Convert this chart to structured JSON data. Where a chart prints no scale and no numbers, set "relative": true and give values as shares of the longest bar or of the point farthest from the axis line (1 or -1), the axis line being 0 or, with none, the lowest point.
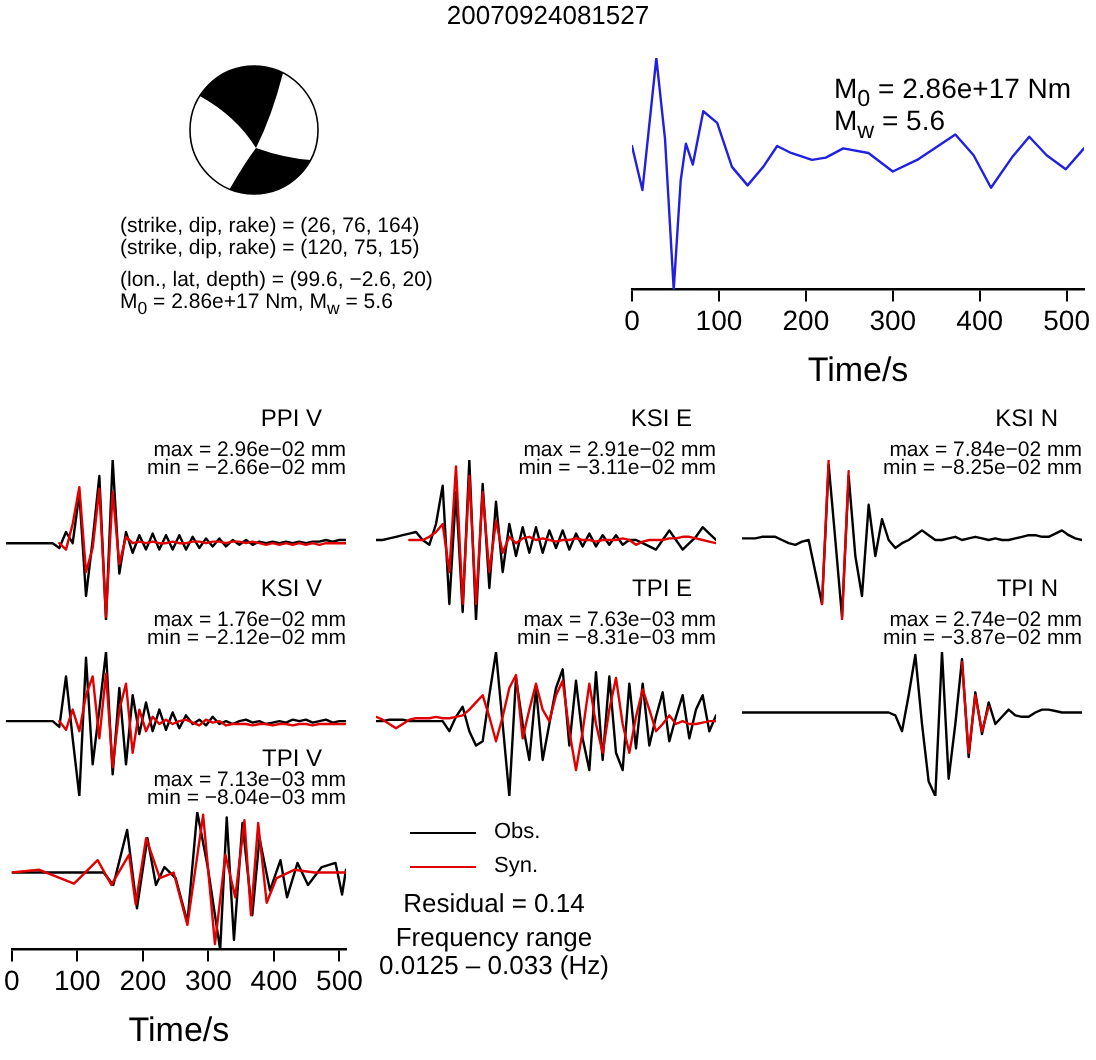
{
  "chart_data": [
    {
      "type": "other",
      "title": "20070924081527",
      "annotations": [
        "(strike, dip, rake) = (26, 76, 164)",
        "(strike, dip, rake) = (120, 75, 15)",
        "(lon., lat, depth) = (99.6, −2.6, 20)",
        "M$_{0}$ = 2.86e+17 Nm, M$_{w}$ = 5.6"
      ]
    },
    {
      "type": "line",
      "xlabel": "Time/s",
      "annotations": [
        "M$_{0}$ = 2.86e+17 Nm",
        "M$_{w}$ = 5.6"
      ],
      "relative": true,
      "xlim": [
        0,
        520
      ],
      "xticks": [
        0,
        100,
        200,
        300,
        400,
        500
      ],
      "tick_labels": "x",
      "series": [
        {
          "color": "#2020e0",
          "x": [
            0,
            12,
            28,
            38,
            48,
            56,
            62,
            70,
            82,
            98,
            115,
            133,
            151,
            167,
            183,
            207,
            223,
            243,
            272,
            300,
            328,
            372,
            393,
            413,
            437,
            457,
            477,
            499,
            520
          ],
          "values": [
            0.62,
            0.43,
            1.0,
            0.65,
            0,
            0.47,
            0.63,
            0.54,
            0.77,
            0.72,
            0.53,
            0.45,
            0.53,
            0.62,
            0.59,
            0.56,
            0.57,
            0.61,
            0.59,
            0.51,
            0.56,
            0.67,
            0.58,
            0.44,
            0.57,
            0.66,
            0.58,
            0.52,
            0.61
          ]
        }
      ]
    },
    {
      "type": "line",
      "title": "PPI V",
      "annotations": [
        "max = 2.96e−02 mm",
        "min = −2.66e−02 mm"
      ],
      "relative": true,
      "tick_labels": false,
      "categories": [
        null,
        null,
        null,
        null,
        null,
        null,
        null,
        null,
        null,
        null,
        null,
        null,
        null,
        null,
        null,
        null,
        null,
        null,
        null,
        null,
        null,
        null,
        null,
        null,
        null,
        null,
        null,
        null,
        null,
        null,
        null,
        null,
        null,
        null,
        null,
        null,
        null,
        null,
        null,
        null,
        null,
        null,
        null,
        null,
        null,
        null,
        null,
        null,
        null,
        null,
        null,
        null
      ],
      "series": [
        {
          "color": "#000000",
          "values": [
            0.48,
            0.48,
            0.48,
            0.48,
            0.48,
            0.48,
            0.48,
            0.48,
            0.45,
            0.55,
            0.48,
            0.79,
            0.15,
            0.5,
            0.9,
            0,
            1,
            0.29,
            0.55,
            0.42,
            0.53,
            0.44,
            0.54,
            0.44,
            0.53,
            0.44,
            0.53,
            0.44,
            0.52,
            0.45,
            0.51,
            0.46,
            0.51,
            0.46,
            0.5,
            0.47,
            0.5,
            0.47,
            0.49,
            0.48,
            0.49,
            0.48,
            0.49,
            0.48,
            0.49,
            0.48,
            0.49,
            0.49,
            0.5,
            0.49,
            0.5,
            0.5
          ]
        },
        {
          "color": "#e00000",
          "values": [
            null,
            null,
            null,
            null,
            null,
            null,
            null,
            null,
            0.48,
            0.44,
            0.6,
            0.83,
            0.3,
            0.45,
            0.82,
            0.02,
            0.8,
            0.35,
            0.52,
            0.48,
            0.49,
            0.48,
            0.49,
            0.48,
            0.48,
            0.49,
            0.48,
            0.48,
            0.49,
            0.49,
            0.48,
            0.49,
            0.49,
            0.48,
            0.49,
            0.49,
            0.48,
            0.49,
            0.48,
            0.47,
            0.48,
            0.47,
            0.48,
            0.47,
            0.48,
            0.47,
            0.48,
            0.47,
            0.48,
            0.48,
            0.48,
            0.48
          ]
        }
      ]
    },
    {
      "type": "line",
      "title": "KSI E",
      "annotations": [
        "max = 2.91e−02 mm",
        "min = −3.11e−02 mm"
      ],
      "relative": true,
      "tick_labels": false,
      "categories": [
        null,
        null,
        null,
        null,
        null,
        null,
        null,
        null,
        null,
        null,
        null,
        null,
        null,
        null,
        null,
        null,
        null,
        null,
        null,
        null,
        null,
        null,
        null,
        null,
        null,
        null,
        null,
        null,
        null,
        null,
        null,
        null,
        null,
        null,
        null,
        null,
        null,
        null,
        null,
        null,
        null,
        null,
        null,
        null,
        null,
        null,
        null,
        null,
        null,
        null,
        null,
        null
      ],
      "series": [
        {
          "color": "#000000",
          "values": [
            0.5,
            0.5,
            0.51,
            0.52,
            0.53,
            0.54,
            0.55,
            0.5,
            0.47,
            0.6,
            0.84,
            0.1,
            0.8,
            0.05,
            1,
            0,
            0.85,
            0.2,
            0.74,
            0.3,
            0.6,
            0.4,
            0.58,
            0.42,
            0.58,
            0.42,
            0.56,
            0.45,
            0.56,
            0.44,
            0.54,
            0.46,
            0.54,
            0.46,
            0.53,
            0.47,
            0.53,
            0.47,
            0.5,
            0.5,
            0.48,
            0.46,
            0.44,
            0.5,
            0.56,
            0.5,
            0.44,
            0.48,
            0.52,
            0.58,
            0.54,
            0.5
          ]
        },
        {
          "color": "#e00000",
          "values": [
            null,
            null,
            null,
            null,
            null,
            0.5,
            0.5,
            0.5,
            0.52,
            0.55,
            0.6,
            0.3,
            0.96,
            0.1,
            0.9,
            0.1,
            0.8,
            0.3,
            0.62,
            0.42,
            0.52,
            0.48,
            0.51,
            0.52,
            0.5,
            0.51,
            0.5,
            0.49,
            0.5,
            0.5,
            0.51,
            0.5,
            0.5,
            0.49,
            0.5,
            0.5,
            0.5,
            0.51,
            0.5,
            0.47,
            0.49,
            0.5,
            0.5,
            0.5,
            0.51,
            0.51,
            0.52,
            0.52,
            0.51,
            0.5,
            0.49,
            0.48
          ]
        }
      ]
    },
    {
      "type": "line",
      "title": "KSI N",
      "annotations": [
        "max = 7.84e−02 mm",
        "min = −8.25e−02 mm"
      ],
      "relative": true,
      "tick_labels": false,
      "categories": [
        null,
        null,
        null,
        null,
        null,
        null,
        null,
        null,
        null,
        null,
        null,
        null,
        null,
        null,
        null,
        null,
        null,
        null,
        null,
        null,
        null,
        null,
        null,
        null,
        null,
        null,
        null,
        null,
        null,
        null,
        null,
        null,
        null,
        null,
        null,
        null,
        null,
        null,
        null,
        null,
        null,
        null,
        null,
        null,
        null,
        null,
        null,
        null,
        null,
        null,
        null,
        null
      ],
      "series": [
        {
          "color": "#000000",
          "values": [
            0.51,
            0.51,
            0.51,
            0.52,
            0.52,
            0.52,
            0.5,
            0.48,
            0.47,
            0.49,
            0.5,
            0.3,
            0.1,
            0.97,
            0.5,
            0.02,
            0.9,
            0.4,
            0.15,
            0.72,
            0.4,
            0.63,
            0.5,
            0.45,
            0.48,
            0.5,
            0.53,
            0.56,
            0.53,
            0.5,
            0.5,
            0.51,
            0.52,
            0.5,
            0.51,
            0.52,
            0.51,
            0.5,
            0.51,
            0.5,
            0.5,
            0.51,
            0.52,
            0.53,
            0.53,
            0.52,
            0.52,
            0.54,
            0.56,
            0.53,
            0.51,
            0.5
          ]
        },
        {
          "color": "#e00000",
          "values": [
            null,
            null,
            null,
            null,
            null,
            null,
            null,
            null,
            null,
            null,
            null,
            null,
            0.1,
            1,
            null,
            0,
            0.93,
            null,
            null,
            null,
            null,
            null,
            null,
            null,
            null,
            null,
            null,
            null,
            null,
            null,
            null,
            null,
            null,
            null,
            null,
            null,
            null,
            null,
            null,
            null,
            null,
            null,
            null,
            null,
            null,
            null,
            null,
            null,
            null,
            null,
            null,
            null
          ]
        }
      ]
    },
    {
      "type": "line",
      "title": "KSI V",
      "annotations": [
        "max = 1.76e−02 mm",
        "min = −2.12e−02 mm"
      ],
      "relative": true,
      "tick_labels": false,
      "categories": [
        null,
        null,
        null,
        null,
        null,
        null,
        null,
        null,
        null,
        null,
        null,
        null,
        null,
        null,
        null,
        null,
        null,
        null,
        null,
        null,
        null,
        null,
        null,
        null,
        null,
        null,
        null,
        null,
        null,
        null,
        null,
        null,
        null,
        null,
        null,
        null,
        null,
        null,
        null,
        null,
        null,
        null,
        null,
        null,
        null,
        null,
        null,
        null,
        null,
        null,
        null,
        null
      ],
      "series": [
        {
          "color": "#000000",
          "values": [
            0.52,
            0.52,
            0.52,
            0.52,
            0.52,
            0.52,
            0.52,
            0.52,
            0.48,
            0.83,
            0.4,
            0,
            0.96,
            0.22,
            0.6,
            1,
            0.15,
            0.75,
            0.22,
            0.7,
            0.43,
            0.65,
            0.45,
            0.6,
            0.46,
            0.58,
            0.47,
            0.56,
            0.5,
            0.53,
            0.49,
            0.55,
            0.5,
            0.52,
            0.5,
            0.52,
            0.53,
            0.51,
            0.52,
            0.5,
            0.51,
            0.52,
            0.51,
            0.53,
            0.52,
            0.53,
            0.51,
            0.52,
            0.53,
            0.51,
            0.52,
            0.52
          ]
        },
        {
          "color": "#e00000",
          "values": [
            null,
            null,
            null,
            null,
            null,
            null,
            null,
            null,
            0.52,
            0.46,
            0.6,
            0.45,
            0.7,
            0.83,
            0.4,
            0.85,
            0.2,
            0.6,
            0.78,
            0.3,
            0.6,
            0.45,
            0.55,
            0.5,
            0.53,
            0.5,
            0.52,
            0.53,
            0.51,
            0.49,
            0.53,
            0.51,
            0.52,
            0.49,
            0.5,
            0.5,
            0.5,
            0.49,
            0.5,
            0.5,
            0.49,
            0.5,
            0.5,
            0.49,
            0.5,
            0.5,
            0.49,
            0.5,
            0.5,
            0.5,
            0.5,
            0.5
          ]
        }
      ]
    },
    {
      "type": "line",
      "title": "TPI E",
      "annotations": [
        "max = 7.63e−03 mm",
        "min = −8.31e−03 mm"
      ],
      "relative": true,
      "tick_labels": false,
      "categories": [
        null,
        null,
        null,
        null,
        null,
        null,
        null,
        null,
        null,
        null,
        null,
        null,
        null,
        null,
        null,
        null,
        null,
        null,
        null,
        null,
        null,
        null,
        null,
        null,
        null,
        null,
        null,
        null,
        null,
        null,
        null,
        null,
        null,
        null,
        null,
        null,
        null,
        null,
        null,
        null,
        null,
        null,
        null,
        null,
        null,
        null,
        null,
        null,
        null,
        null,
        null,
        null
      ],
      "series": [
        {
          "color": "#000000",
          "values": [
            0.52,
            0.52,
            0.53,
            0.53,
            0.53,
            0.52,
            0.52,
            0.52,
            0.52,
            0.52,
            0.52,
            0.45,
            0.55,
            0.62,
            0.45,
            0.35,
            0.38,
            0.7,
            1,
            0.5,
            0,
            0.82,
            0.5,
            0.25,
            0.75,
            0.25,
            0.5,
            0.75,
            0.88,
            0.35,
            0.8,
            0.4,
            0.18,
            0.86,
            0.25,
            0.83,
            0.3,
            0.18,
            0.78,
            0.33,
            0.78,
            0.35,
            0.55,
            0.72,
            0.38,
            0.55,
            0.7,
            0.4,
            0.6,
            0.7,
            0.45,
            0.56
          ]
        },
        {
          "color": "#e00000",
          "values": [
            0.55,
            0.53,
            0.5,
            0.47,
            0.5,
            0.53,
            0.54,
            0.54,
            0.54,
            0.55,
            0.54,
            0.54,
            0.55,
            0.56,
            0.6,
            0.65,
            0.7,
            0.55,
            0.38,
            0.55,
            0.75,
            0.84,
            0.4,
            0.6,
            0.78,
            0.6,
            0.52,
            0.7,
            0.8,
            0.45,
            0.18,
            0.45,
            0.78,
            0.5,
            0.3,
            0.6,
            0.82,
            0.5,
            0.3,
            0.55,
            0.74,
            0.6,
            0.45,
            0.5,
            0.56,
            0.5,
            0.52,
            0.5,
            0.5,
            0.51,
            0.52,
            0.52
          ]
        }
      ]
    },
    {
      "type": "line",
      "title": "TPI N",
      "annotations": [
        "max = 2.74e−02 mm",
        "min = −3.87e−02 mm"
      ],
      "relative": true,
      "tick_labels": false,
      "categories": [
        null,
        null,
        null,
        null,
        null,
        null,
        null,
        null,
        null,
        null,
        null,
        null,
        null,
        null,
        null,
        null,
        null,
        null,
        null,
        null,
        null,
        null,
        null,
        null,
        null,
        null,
        null,
        null,
        null,
        null,
        null,
        null,
        null,
        null,
        null,
        null,
        null,
        null,
        null,
        null,
        null,
        null,
        null,
        null,
        null,
        null,
        null,
        null,
        null,
        null,
        null,
        null
      ],
      "series": [
        {
          "color": "#000000",
          "values": [
            0.58,
            0.58,
            0.58,
            0.58,
            0.58,
            0.58,
            0.58,
            0.58,
            0.58,
            0.58,
            0.58,
            0.58,
            0.58,
            0.58,
            0.58,
            0.58,
            0.58,
            0.58,
            0.58,
            0.58,
            0.58,
            0.58,
            0.58,
            0.56,
            0.45,
            0.7,
            0.98,
            0.5,
            0.1,
            0,
            1,
            0.12,
            0.5,
            0.95,
            0.27,
            0.72,
            0.43,
            0.65,
            0.5,
            0.55,
            0.6,
            0.56,
            0.55,
            0.55,
            0.58,
            0.6,
            0.6,
            0.59,
            0.58,
            0.58,
            0.58,
            0.58
          ]
        },
        {
          "color": "#e00000",
          "values": [
            null,
            null,
            null,
            null,
            null,
            null,
            null,
            null,
            null,
            null,
            null,
            null,
            null,
            null,
            null,
            null,
            null,
            null,
            null,
            null,
            null,
            null,
            null,
            null,
            null,
            null,
            null,
            null,
            null,
            null,
            null,
            null,
            null,
            0.93,
            0.3,
            0.7,
            0.45,
            0.62,
            null,
            null,
            null,
            null,
            null,
            null,
            null,
            null,
            null,
            null,
            null,
            null,
            null,
            null
          ]
        }
      ]
    },
    {
      "type": "line",
      "title": "TPI V",
      "annotations": [
        "max = 7.13e−03 mm",
        "min = −8.04e−03 mm",
        "Residual = 0.14",
        "Frequency range",
        "0.0125 – 0.033 (Hz)"
      ],
      "relative": true,
      "xlim": [
        0,
        510
      ],
      "xticks": [
        0,
        100,
        200,
        300,
        400,
        500
      ],
      "xlabel": "Time/s",
      "tick_labels": "x",
      "legend": "right",
      "series": [
        {
          "name": "Obs.",
          "color": "#000000",
          "x": [
            0,
            140,
            155,
            176,
            191,
            207,
            220,
            233,
            250,
            268,
            283,
            299,
            318,
            328,
            339,
            352,
            367,
            378,
            394,
            410,
            420,
            436,
            452,
            473,
            494,
            504,
            510
          ],
          "values": [
            0.56,
            0.56,
            0.47,
            0.87,
            0.3,
            0.81,
            0.47,
            0.6,
            0.52,
            0.2,
            1.0,
            0.6,
            0,
            0.96,
            0.07,
            0.92,
            0.25,
            0.81,
            0.43,
            0.65,
            0.38,
            0.63,
            0.47,
            0.6,
            0.63,
            0.4,
            0.58
          ]
        },
        {
          "name": "Syn.",
          "color": "#e00000",
          "x": [
            0,
            42,
            95,
            131,
            152,
            179,
            189,
            205,
            226,
            247,
            268,
            292,
            310,
            326,
            341,
            355,
            365,
            376,
            389,
            404,
            431,
            462,
            510
          ],
          "values": [
            0.56,
            0.58,
            0.48,
            0.65,
            0.47,
            0.69,
            0.33,
            0.81,
            0.52,
            0.56,
            0.18,
            0.98,
            0.04,
            0.69,
            0.38,
            0.94,
            0.25,
            0.92,
            0.34,
            0.52,
            0.58,
            0.56,
            0.56
          ]
        }
      ]
    }
  ]
}
